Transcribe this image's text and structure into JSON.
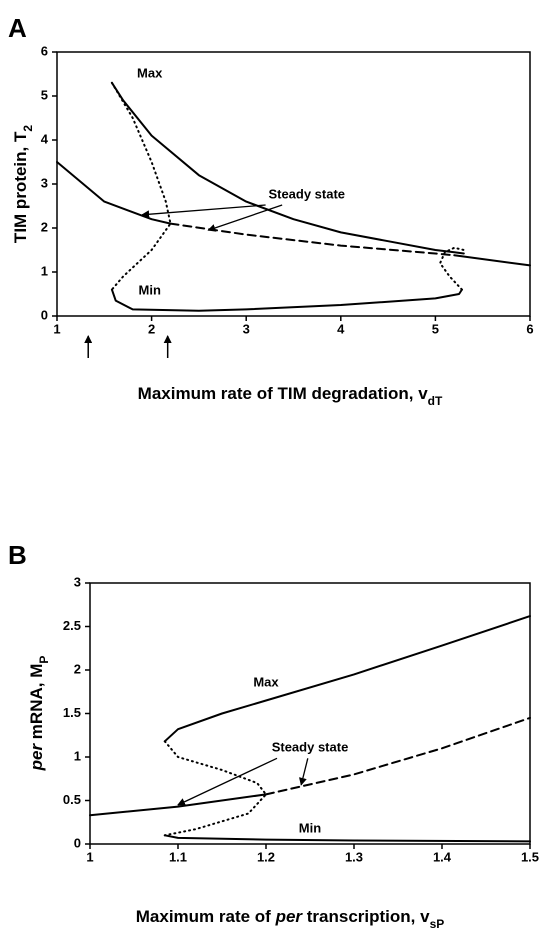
{
  "chart_data": [
    {
      "type": "line",
      "panel": "A",
      "xlabel": [
        {
          "text": "Maximum rate of TIM degradation, v"
        },
        {
          "text": "dT",
          "sub": true
        }
      ],
      "ylabel": [
        {
          "text": "TIM protein, T"
        },
        {
          "text": "2",
          "sub": true
        }
      ],
      "xlim": [
        1,
        6
      ],
      "ylim": [
        0,
        6
      ],
      "xticks": [
        1,
        2,
        3,
        4,
        5,
        6
      ],
      "yticks": [
        0,
        1,
        2,
        3,
        4,
        5,
        6
      ],
      "color": "#000000",
      "series": [
        {
          "style": "solid",
          "x": [
            1.58,
            1.7,
            2,
            2.5,
            3,
            3.5,
            4,
            4.5,
            5,
            5.2,
            5.3
          ],
          "values": [
            5.3,
            4.9,
            4.1,
            3.2,
            2.6,
            2.2,
            1.9,
            1.7,
            1.5,
            1.45,
            1.42
          ]
        },
        {
          "style": "solid",
          "x": [
            1.58,
            1.62,
            1.8,
            2.5,
            3,
            4,
            5,
            5.25,
            5.28
          ],
          "values": [
            0.6,
            0.35,
            0.15,
            0.12,
            0.15,
            0.25,
            0.4,
            0.5,
            0.6
          ]
        },
        {
          "style": "solid",
          "x": [
            1,
            1.5,
            2,
            2.2
          ],
          "values": [
            3.5,
            2.6,
            2.2,
            2.1
          ]
        },
        {
          "style": "dashed",
          "x": [
            2.2,
            3,
            4,
            5,
            5.2
          ],
          "values": [
            2.1,
            1.85,
            1.6,
            1.42,
            1.38
          ]
        },
        {
          "style": "solid",
          "x": [
            5.2,
            6
          ],
          "values": [
            1.38,
            1.15
          ]
        },
        {
          "style": "dotted",
          "x": [
            1.58,
            1.8,
            2,
            2.15,
            2.2,
            2,
            1.7,
            1.58
          ],
          "values": [
            5.3,
            4.5,
            3.5,
            2.6,
            2.1,
            1.5,
            0.9,
            0.6
          ]
        },
        {
          "style": "dotted",
          "x": [
            5.28,
            5.15,
            5.05,
            5.1,
            5.2,
            5.3
          ],
          "values": [
            0.6,
            0.9,
            1.2,
            1.45,
            1.55,
            1.5
          ]
        }
      ],
      "annotations": [
        {
          "text": "Max",
          "x": 1.98,
          "y": 5.5
        },
        {
          "text": "Min",
          "x": 1.98,
          "y": 0.57
        },
        {
          "text": "Steady state",
          "x": 3.64,
          "y": 2.75,
          "arrows": [
            {
              "x": 1.9,
              "y": 2.3
            },
            {
              "x": 2.6,
              "y": 1.95
            }
          ]
        }
      ],
      "x_arrows": [
        1.33,
        2.17
      ]
    },
    {
      "type": "line",
      "panel": "B",
      "xlabel": [
        {
          "text": "Maximum rate of "
        },
        {
          "text": "per",
          "italic": true
        },
        {
          "text": " transcription, v"
        },
        {
          "text": "sP",
          "sub": true
        }
      ],
      "ylabel": [
        {
          "text": "per",
          "italic": true
        },
        {
          "text": " mRNA, M"
        },
        {
          "text": "P",
          "sub": true
        }
      ],
      "xlim": [
        1,
        1.5
      ],
      "ylim": [
        0,
        3
      ],
      "xticks": [
        1,
        1.1,
        1.2,
        1.3,
        1.4,
        1.5
      ],
      "yticks": [
        0,
        0.5,
        1,
        1.5,
        2,
        2.5,
        3
      ],
      "color": "#000000",
      "series": [
        {
          "style": "solid",
          "x": [
            1.085,
            1.1,
            1.15,
            1.2,
            1.3,
            1.4,
            1.5
          ],
          "values": [
            1.18,
            1.32,
            1.5,
            1.65,
            1.95,
            2.28,
            2.62
          ]
        },
        {
          "style": "solid",
          "x": [
            1.085,
            1.1,
            1.2,
            1.3,
            1.5
          ],
          "values": [
            0.1,
            0.07,
            0.05,
            0.04,
            0.03
          ]
        },
        {
          "style": "solid",
          "x": [
            1,
            1.1,
            1.2
          ],
          "values": [
            0.33,
            0.43,
            0.57
          ]
        },
        {
          "style": "dashed",
          "x": [
            1.2,
            1.3,
            1.4,
            1.5
          ],
          "values": [
            0.57,
            0.8,
            1.1,
            1.45
          ]
        },
        {
          "style": "dotted",
          "x": [
            1.085,
            1.1,
            1.15,
            1.19,
            1.2,
            1.18,
            1.12,
            1.085
          ],
          "values": [
            1.18,
            1.0,
            0.85,
            0.7,
            0.57,
            0.35,
            0.17,
            0.1
          ]
        }
      ],
      "annotations": [
        {
          "text": "Max",
          "x": 1.2,
          "y": 1.85
        },
        {
          "text": "Steady state",
          "x": 1.25,
          "y": 1.1,
          "arrows": [
            {
              "x": 1.1,
              "y": 0.45
            },
            {
              "x": 1.24,
              "y": 0.68
            }
          ]
        },
        {
          "text": "Min",
          "x": 1.25,
          "y": 0.17
        }
      ]
    }
  ]
}
